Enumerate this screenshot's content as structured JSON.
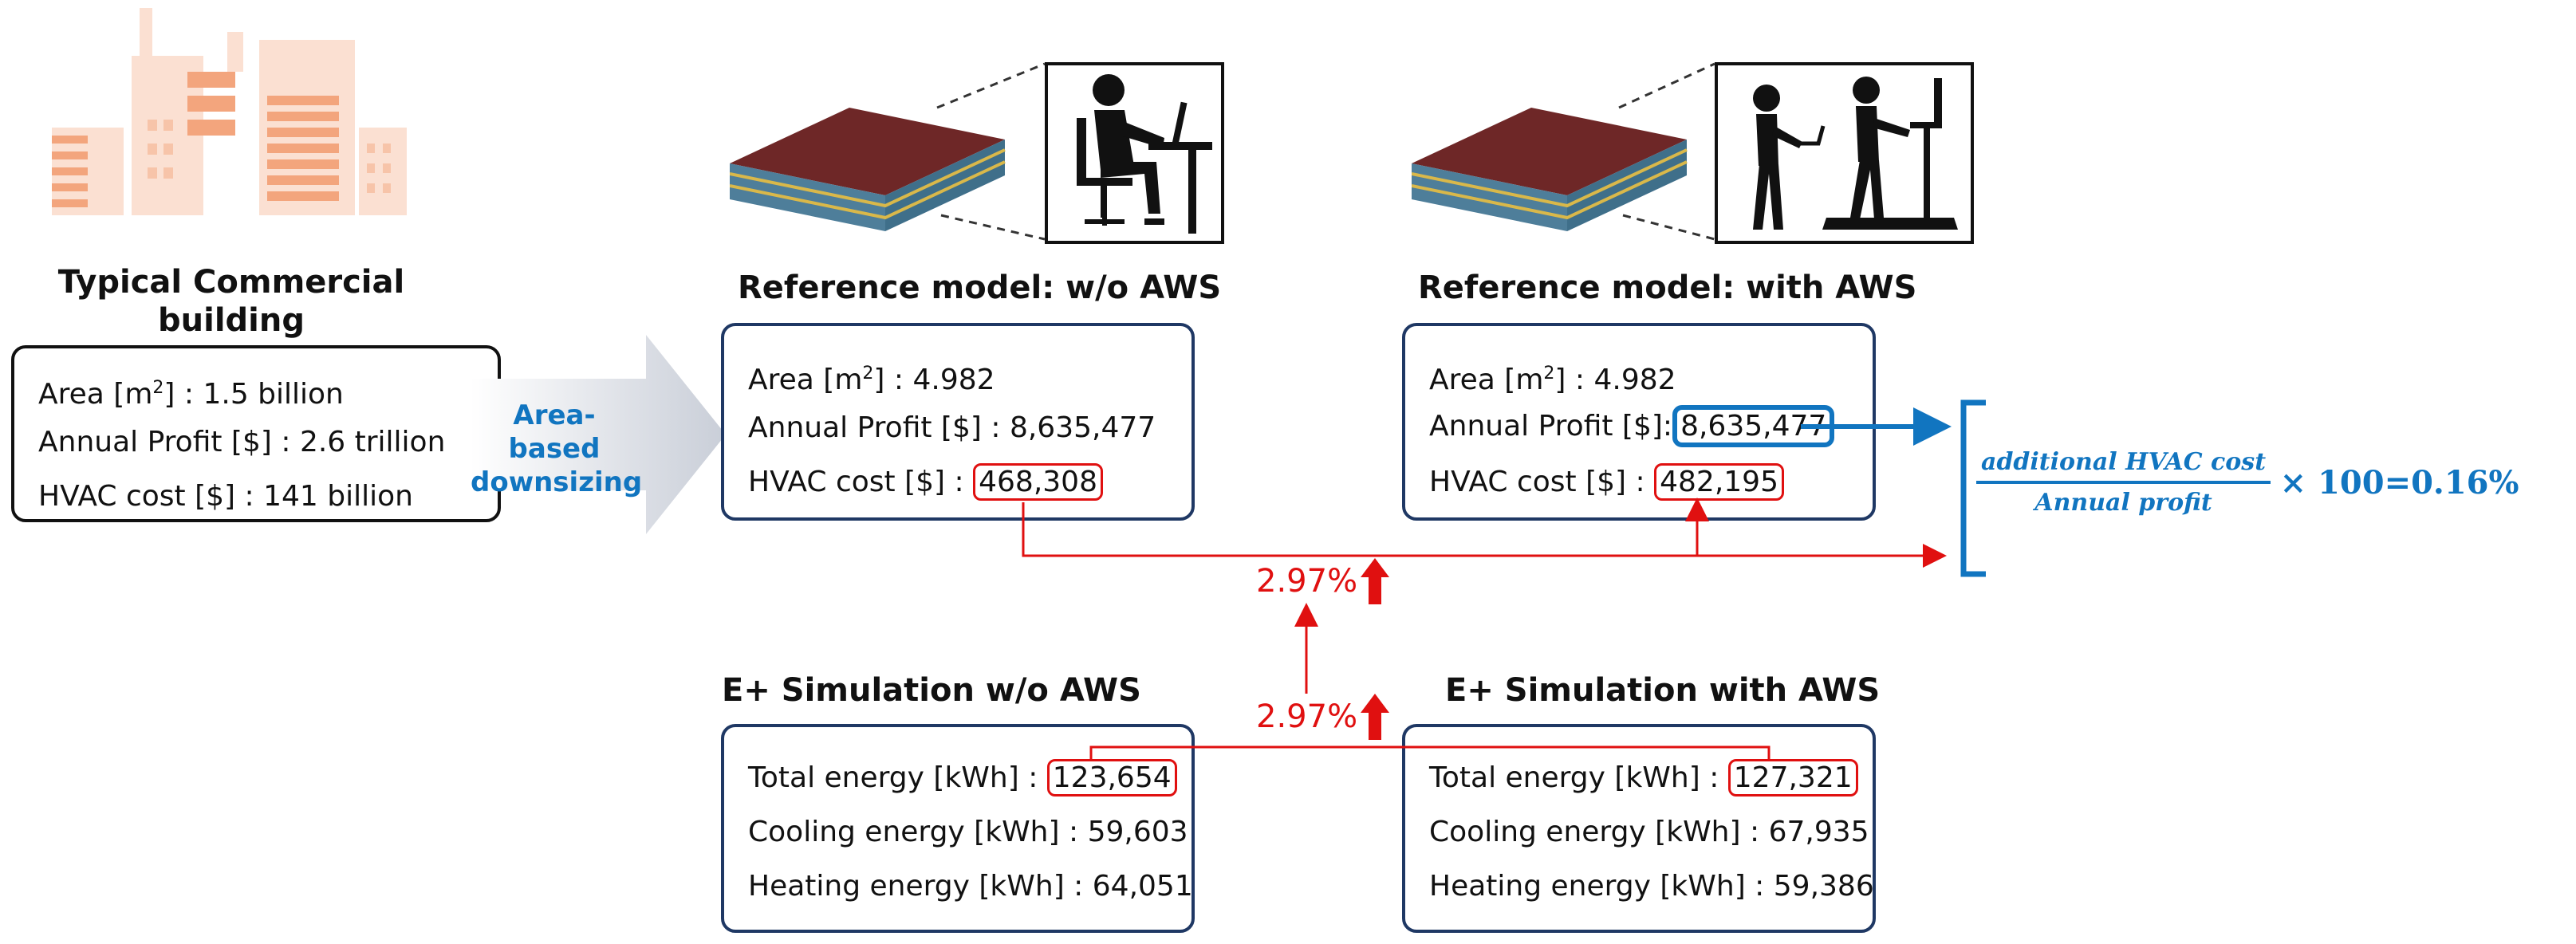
{
  "typical": {
    "title_line1": "Typical Commercial",
    "title_line2": "building",
    "area": "1.5 billion",
    "profit": "2.6 trillion",
    "hvac": "141 billion"
  },
  "labels": {
    "area": "Area [m",
    "area_sup": "2",
    "area_suffix": "] : ",
    "profit": "Annual Profit [$] : ",
    "profit_colon": "Annual Profit [$]:",
    "hvac": "HVAC cost [$] : ",
    "total": "Total energy [kWh] : ",
    "cooling": "Cooling energy [kWh] : ",
    "heating": "Heating energy [kWh] : "
  },
  "arrow_text": {
    "line1": "Area-based",
    "line2": "downsizing"
  },
  "ref_wo": {
    "title": "Reference model: w/o AWS",
    "area": "4.982",
    "profit": "8,635,477",
    "hvac": "468,308"
  },
  "ref_with": {
    "title": "Reference model: with AWS",
    "area": "4.982",
    "profit": "8,635,477",
    "hvac": "482,195"
  },
  "sim_wo": {
    "title": "E+ Simulation w/o AWS",
    "total": "123,654",
    "cooling": "59,603",
    "heating": "64,051"
  },
  "sim_with": {
    "title": "E+ Simulation with AWS",
    "total": "127,321",
    "cooling": "67,935",
    "heating": "59,386"
  },
  "increase": {
    "upper": "2.97%",
    "lower": "2.97%"
  },
  "formula": {
    "numerator": "additional HVAC cost",
    "denominator": "Annual profit",
    "result": "× 100=0.16%"
  },
  "colors": {
    "box_border": "#1f3864",
    "highlight": "#e01010",
    "accent": "#1175c0",
    "slab_top": "#6e2727"
  }
}
